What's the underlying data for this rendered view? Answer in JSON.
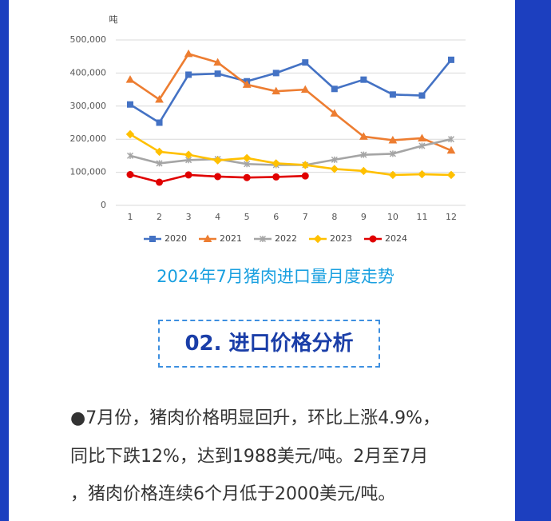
{
  "chart_data": {
    "type": "line",
    "y_label": "吨",
    "categories": [
      "1",
      "2",
      "3",
      "4",
      "5",
      "6",
      "7",
      "8",
      "9",
      "10",
      "11",
      "12"
    ],
    "series": [
      {
        "name": "2020",
        "color": "#4472c4",
        "marker": "square",
        "values": [
          305000,
          250000,
          395000,
          398000,
          375000,
          400000,
          432000,
          352000,
          380000,
          335000,
          332000,
          440000
        ]
      },
      {
        "name": "2021",
        "color": "#ed7d31",
        "marker": "triangle",
        "values": [
          380000,
          320000,
          458000,
          432000,
          365000,
          345000,
          350000,
          278000,
          208000,
          197000,
          203000,
          166000
        ]
      },
      {
        "name": "2022",
        "color": "#a5a5a5",
        "marker": "cross",
        "values": [
          150000,
          127000,
          137000,
          140000,
          125000,
          122000,
          122000,
          138000,
          153000,
          156000,
          180000,
          200000
        ]
      },
      {
        "name": "2023",
        "color": "#ffc000",
        "marker": "diamond",
        "values": [
          215000,
          162000,
          153000,
          136000,
          143000,
          127000,
          122000,
          110000,
          104000,
          92000,
          94000,
          92000
        ]
      },
      {
        "name": "2024",
        "color": "#e00000",
        "marker": "circle",
        "values": [
          93000,
          70000,
          92000,
          87000,
          84000,
          86000,
          89000,
          null,
          null,
          null,
          null,
          null
        ]
      }
    ],
    "ylim": [
      0,
      500000
    ],
    "yticks": [
      0,
      {
        "value": 100000,
        "label": "100,000"
      },
      {
        "value": 200000,
        "label": "200,000"
      },
      {
        "value": 300000,
        "label": "300,000"
      },
      {
        "value": 400000,
        "label": "400,000"
      },
      {
        "value": 500000,
        "label": "500,000"
      }
    ],
    "grid": true
  },
  "caption": "2024年7月猪肉进口量月度走势",
  "section_title": "02. 进口价格分析",
  "paragraph": [
    "●7月份，猪肉价格明显回升，环比上涨4.9%，",
    "同比下跌12%，达到1988美元/吨。2月至7月",
    "，猪肉价格连续6个月低于2000美元/吨。"
  ]
}
